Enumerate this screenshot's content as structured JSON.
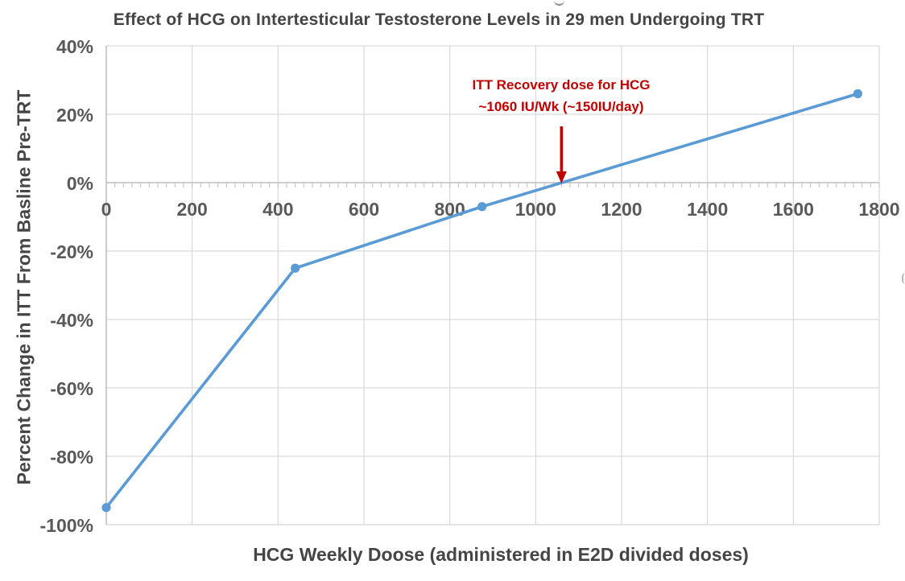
{
  "page": {
    "background": "#FFFFFF"
  },
  "chart_data": {
    "type": "line",
    "title": "Effect of HCG on Intertesticular Testosterone Levels in 29 men Undergoing TRT",
    "xlabel": "HCG Weekly Doose (administered in E2D divided doses)",
    "ylabel": "Percent Change in ITT From Basline Pre-TRT",
    "xlim": [
      0,
      1800
    ],
    "ylim_percent": [
      -100,
      40
    ],
    "x_ticks": [
      0,
      200,
      400,
      600,
      800,
      1000,
      1200,
      1400,
      1600,
      1800
    ],
    "x_tick_labels": [
      "0",
      "200",
      "400",
      "600",
      "800",
      "1000",
      "1200",
      "1400",
      "1600",
      "1800"
    ],
    "x_minor_tick_step": 20,
    "y_ticks_percent": [
      40,
      20,
      0,
      -20,
      -40,
      -60,
      -80,
      -100
    ],
    "y_tick_labels": [
      "40%",
      "20%",
      "0%",
      "-20%",
      "-40%",
      "-60%",
      "-80%",
      "-100%"
    ],
    "grid": true,
    "legend": "none",
    "series": [
      {
        "name": "Percent change in ITT from baseline",
        "type": "line",
        "color": "#5B9BD5",
        "marker": "circle",
        "points": [
          [
            0,
            -95
          ],
          [
            440,
            -25
          ],
          [
            875,
            -7
          ],
          [
            1750,
            26
          ]
        ]
      }
    ],
    "annotation": {
      "line1": "ITT Recovery dose for HCG",
      "line2": "~1060 IU/Wk (~150IU/day)",
      "color": "#C00000",
      "arrow_x": 1060,
      "arrow_points_to_percent": 0
    },
    "colors": {
      "gridline": "#D9D9D9",
      "axis_line": "#BFBFBF",
      "tick_text": "#595959",
      "title_text": "#454545",
      "series_line": "#5B9BD5",
      "annotation": "#C00000"
    }
  }
}
